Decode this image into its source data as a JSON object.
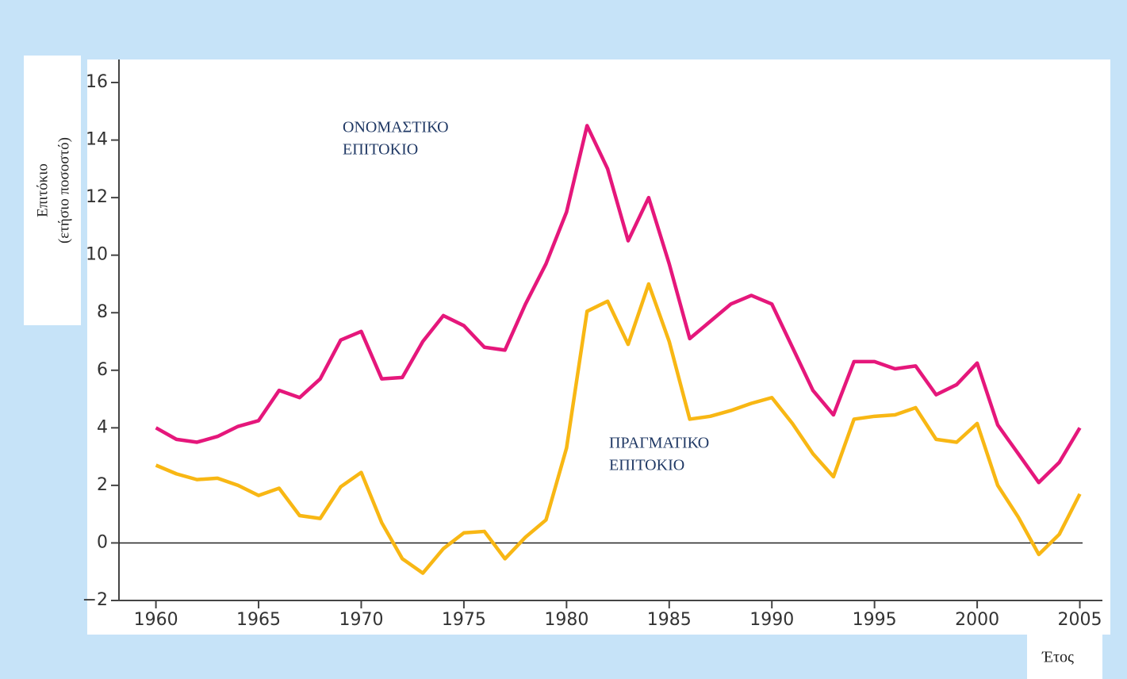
{
  "chart_data": {
    "type": "line",
    "ylabel": [
      "Επιτόκιο",
      "(ετήσιο ποσοστό)"
    ],
    "xlabel": "Έτος",
    "x": [
      1960,
      1961,
      1962,
      1963,
      1964,
      1965,
      1966,
      1967,
      1968,
      1969,
      1970,
      1971,
      1972,
      1973,
      1974,
      1975,
      1976,
      1977,
      1978,
      1979,
      1980,
      1981,
      1982,
      1983,
      1984,
      1985,
      1986,
      1987,
      1988,
      1989,
      1990,
      1991,
      1992,
      1993,
      1994,
      1995,
      1996,
      1997,
      1998,
      1999,
      2000,
      2001,
      2002,
      2003,
      2004,
      2005
    ],
    "series": [
      {
        "color": "#e5177b",
        "values": [
          4.0,
          3.6,
          3.5,
          3.7,
          4.05,
          4.25,
          5.3,
          5.05,
          5.7,
          7.05,
          7.35,
          5.7,
          5.75,
          7.0,
          7.9,
          7.55,
          6.8,
          6.7,
          8.3,
          9.7,
          11.5,
          14.5,
          13.0,
          10.5,
          12.0,
          9.7,
          7.1,
          7.7,
          8.3,
          8.6,
          8.3,
          6.8,
          5.3,
          4.45,
          6.3,
          6.3,
          6.05,
          6.15,
          5.15,
          5.5,
          6.25,
          4.1,
          3.1,
          2.1,
          2.8,
          4.0
        ]
      },
      {
        "color": "#f8b714",
        "values": [
          2.7,
          2.4,
          2.2,
          2.25,
          2.0,
          1.65,
          1.9,
          0.95,
          0.85,
          1.95,
          2.45,
          0.7,
          -0.55,
          -1.05,
          -0.2,
          0.35,
          0.4,
          -0.55,
          0.2,
          0.8,
          3.3,
          8.05,
          8.4,
          6.9,
          9.0,
          7.0,
          4.3,
          4.4,
          4.6,
          4.85,
          5.05,
          4.15,
          3.1,
          2.3,
          4.3,
          4.4,
          4.45,
          4.7,
          3.6,
          3.5,
          4.15,
          2.0,
          0.9,
          -0.4,
          0.3,
          1.7
        ]
      }
    ],
    "annotations": [
      {
        "lines": [
          "ΟΝΟΜΑΣΤΙΚΟ",
          "ΕΠΙΤΟΚΙΟ"
        ]
      },
      {
        "lines": [
          "ΠΡΑΓΜΑΤΙΚΟ",
          "ΕΠΙΤΟΚΙΟ"
        ]
      }
    ],
    "xlim": [
      1958.2,
      2006.1
    ],
    "xticks": [
      1960,
      1965,
      1970,
      1975,
      1980,
      1985,
      1990,
      1995,
      2000,
      2005
    ],
    "ylim": [
      -2,
      16.8
    ],
    "yticks": [
      {
        "value": -2,
        "label": "−2"
      },
      0,
      2,
      4,
      6,
      8,
      10,
      12,
      14,
      16
    ],
    "zero_line": true
  }
}
